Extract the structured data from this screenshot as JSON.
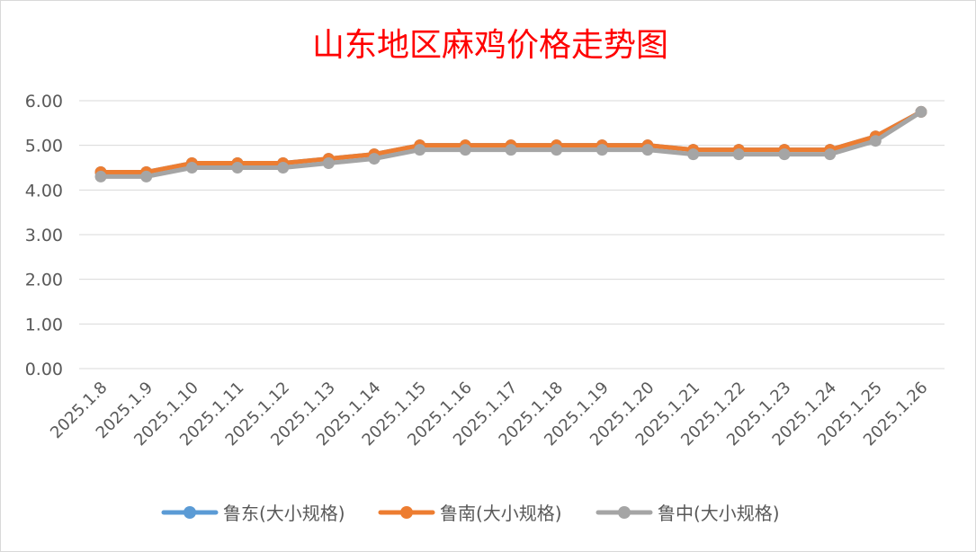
{
  "chart_data": {
    "type": "line",
    "title": "山东地区麻鸡价格走势图",
    "title_color": "#ff0000",
    "xlabel": "",
    "ylabel": "",
    "ylim": [
      0,
      6
    ],
    "yticks": [
      "0.00",
      "1.00",
      "2.00",
      "3.00",
      "4.00",
      "5.00",
      "6.00"
    ],
    "grid": "horizontal",
    "legend_position": "bottom",
    "categories": [
      "2025.1.8",
      "2025.1.9",
      "2025.1.10",
      "2025.1.11",
      "2025.1.12",
      "2025.1.13",
      "2025.1.14",
      "2025.1.15",
      "2025.1.16",
      "2025.1.17",
      "2025.1.18",
      "2025.1.19",
      "2025.1.20",
      "2025.1.21",
      "2025.1.22",
      "2025.1.23",
      "2025.1.24",
      "2025.1.25",
      "2025.1.26"
    ],
    "series": [
      {
        "name": "鲁东(大小规格)",
        "color": "#5b9bd5",
        "values": [
          4.4,
          4.4,
          4.6,
          4.6,
          4.6,
          4.7,
          4.8,
          5.0,
          5.0,
          5.0,
          5.0,
          5.0,
          5.0,
          4.9,
          4.9,
          4.9,
          4.9,
          5.2,
          5.75
        ]
      },
      {
        "name": "鲁南(大小规格)",
        "color": "#ed7d31",
        "values": [
          4.4,
          4.4,
          4.6,
          4.6,
          4.6,
          4.7,
          4.8,
          5.0,
          5.0,
          5.0,
          5.0,
          5.0,
          5.0,
          4.9,
          4.9,
          4.9,
          4.9,
          5.2,
          5.75
        ]
      },
      {
        "name": "鲁中(大小规格)",
        "color": "#a5a5a5",
        "values": [
          4.3,
          4.3,
          4.5,
          4.5,
          4.5,
          4.6,
          4.7,
          4.9,
          4.9,
          4.9,
          4.9,
          4.9,
          4.9,
          4.8,
          4.8,
          4.8,
          4.8,
          5.1,
          5.75
        ]
      }
    ]
  }
}
